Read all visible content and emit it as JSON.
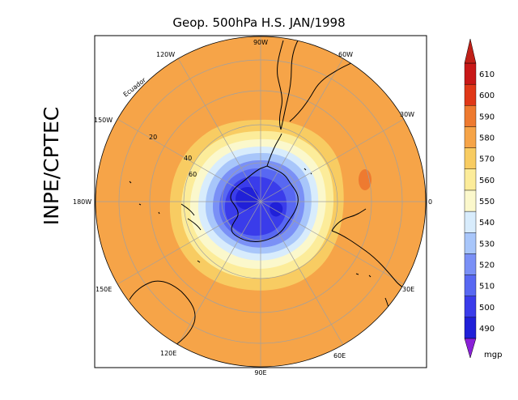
{
  "title": "Geop. 500hPa H.S. JAN/1998",
  "side_label": "INPE/CPTEC",
  "equator_label": "Ecuador",
  "lon_labels": [
    "0",
    "30E",
    "60E",
    "90E",
    "120E",
    "150E",
    "180W",
    "150W",
    "120W",
    "90W",
    "60W",
    "30W"
  ],
  "lat_labels": [
    "20",
    "40",
    "60"
  ],
  "colorbar": {
    "unit": "mgp",
    "ticks": [
      "490",
      "500",
      "510",
      "520",
      "530",
      "540",
      "550",
      "560",
      "570",
      "580",
      "590",
      "600",
      "610"
    ],
    "colors": [
      "#2020d8",
      "#3a3cea",
      "#5868f2",
      "#7a90f6",
      "#a8c6fa",
      "#d8ecfc",
      "#fbf8cc",
      "#fcec9a",
      "#f8cc62",
      "#f6a448",
      "#ee7a30",
      "#e03818",
      "#c81818"
    ],
    "arrow_low_color": "#8a20d8",
    "arrow_high_color": "#c02018"
  },
  "map_colors": {
    "outer": "#f6a448",
    "ring_570": "#f8cc62",
    "ring_560": "#fcec9a",
    "ring_550": "#fbf8cc",
    "ring_540": "#d8ecfc",
    "ring_530": "#a8c6fa",
    "ring_520": "#7a90f6",
    "ring_510": "#5868f2",
    "ring_500": "#3a3cea",
    "core": "#2020d8",
    "spot": "#ee7a30",
    "grid": "#a0a0a0",
    "coast": "#000000"
  }
}
